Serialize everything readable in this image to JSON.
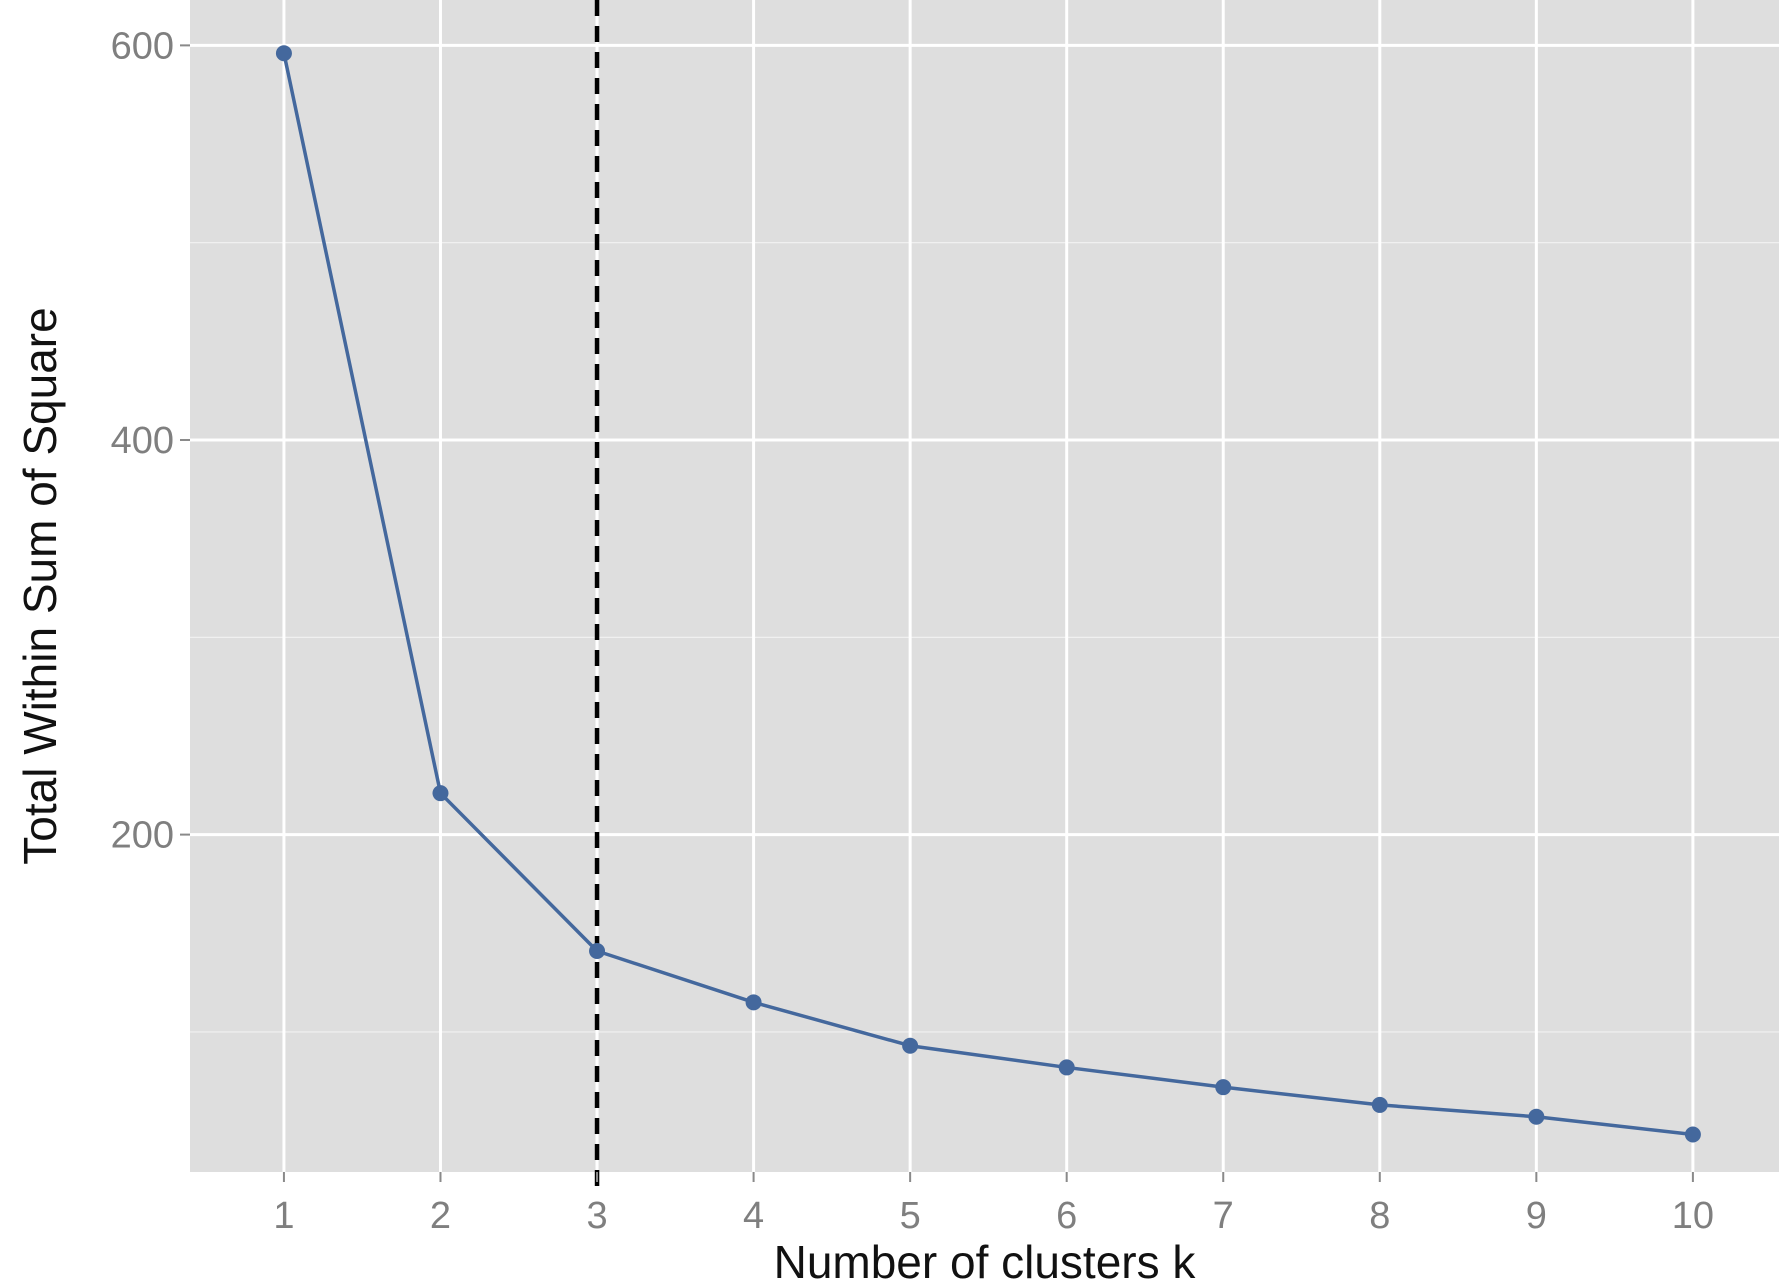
{
  "chart_data": {
    "type": "line",
    "title": "",
    "xlabel": "Number of clusters k",
    "ylabel": "Total Within Sum of Square",
    "x": [
      1,
      2,
      3,
      4,
      5,
      6,
      7,
      8,
      9,
      10
    ],
    "series": [
      {
        "values": [
          596,
          221,
          141,
          115,
          93,
          82,
          72,
          63,
          57,
          48
        ]
      }
    ],
    "xlim": [
      0.4,
      10.55
    ],
    "ylim": [
      29,
      623
    ],
    "xticks": [
      1,
      2,
      3,
      4,
      5,
      6,
      7,
      8,
      9,
      10
    ],
    "xtick_labels": [
      "1",
      "2",
      "3",
      "4",
      "5",
      "6",
      "7",
      "8",
      "9",
      "10"
    ],
    "yticks": [
      200,
      400,
      600
    ],
    "ytick_labels": [
      "200",
      "400",
      "600"
    ],
    "reference_line": {
      "axis": "x",
      "value": 3,
      "style": "dashed",
      "color": "#000000"
    },
    "grid": true,
    "legend": "none",
    "colors": {
      "panel_background": "#dedede",
      "gridline": "#ffffff",
      "series": "#44689d",
      "tick_label": "#7f7f7f",
      "axis_title": "#111111"
    }
  }
}
